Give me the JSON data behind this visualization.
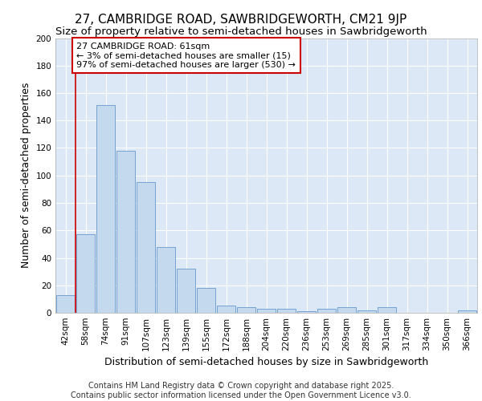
{
  "title": "27, CAMBRIDGE ROAD, SAWBRIDGEWORTH, CM21 9JP",
  "subtitle": "Size of property relative to semi-detached houses in Sawbridgeworth",
  "xlabel": "Distribution of semi-detached houses by size in Sawbridgeworth",
  "ylabel": "Number of semi-detached properties",
  "categories": [
    "42sqm",
    "58sqm",
    "74sqm",
    "91sqm",
    "107sqm",
    "123sqm",
    "139sqm",
    "155sqm",
    "172sqm",
    "188sqm",
    "204sqm",
    "220sqm",
    "236sqm",
    "253sqm",
    "269sqm",
    "285sqm",
    "301sqm",
    "317sqm",
    "334sqm",
    "350sqm",
    "366sqm"
  ],
  "values": [
    13,
    57,
    151,
    118,
    95,
    48,
    32,
    18,
    5,
    4,
    3,
    3,
    1,
    3,
    4,
    2,
    4,
    0,
    0,
    0,
    2
  ],
  "bar_color": "#c5d9ee",
  "bar_edge_color": "#6699cc",
  "highlight_line_color": "#cc0000",
  "annotation_text": "27 CAMBRIDGE ROAD: 61sqm\n← 3% of semi-detached houses are smaller (15)\n97% of semi-detached houses are larger (530) →",
  "annotation_box_color": "#ffffff",
  "annotation_box_edge_color": "#cc0000",
  "ylim": [
    0,
    200
  ],
  "yticks": [
    0,
    20,
    40,
    60,
    80,
    100,
    120,
    140,
    160,
    180,
    200
  ],
  "background_color": "#dce8f5",
  "grid_color": "#ffffff",
  "footer": "Contains HM Land Registry data © Crown copyright and database right 2025.\nContains public sector information licensed under the Open Government Licence v3.0.",
  "title_fontsize": 11,
  "subtitle_fontsize": 9.5,
  "label_fontsize": 9,
  "tick_fontsize": 7.5,
  "annotation_fontsize": 8,
  "footer_fontsize": 7
}
